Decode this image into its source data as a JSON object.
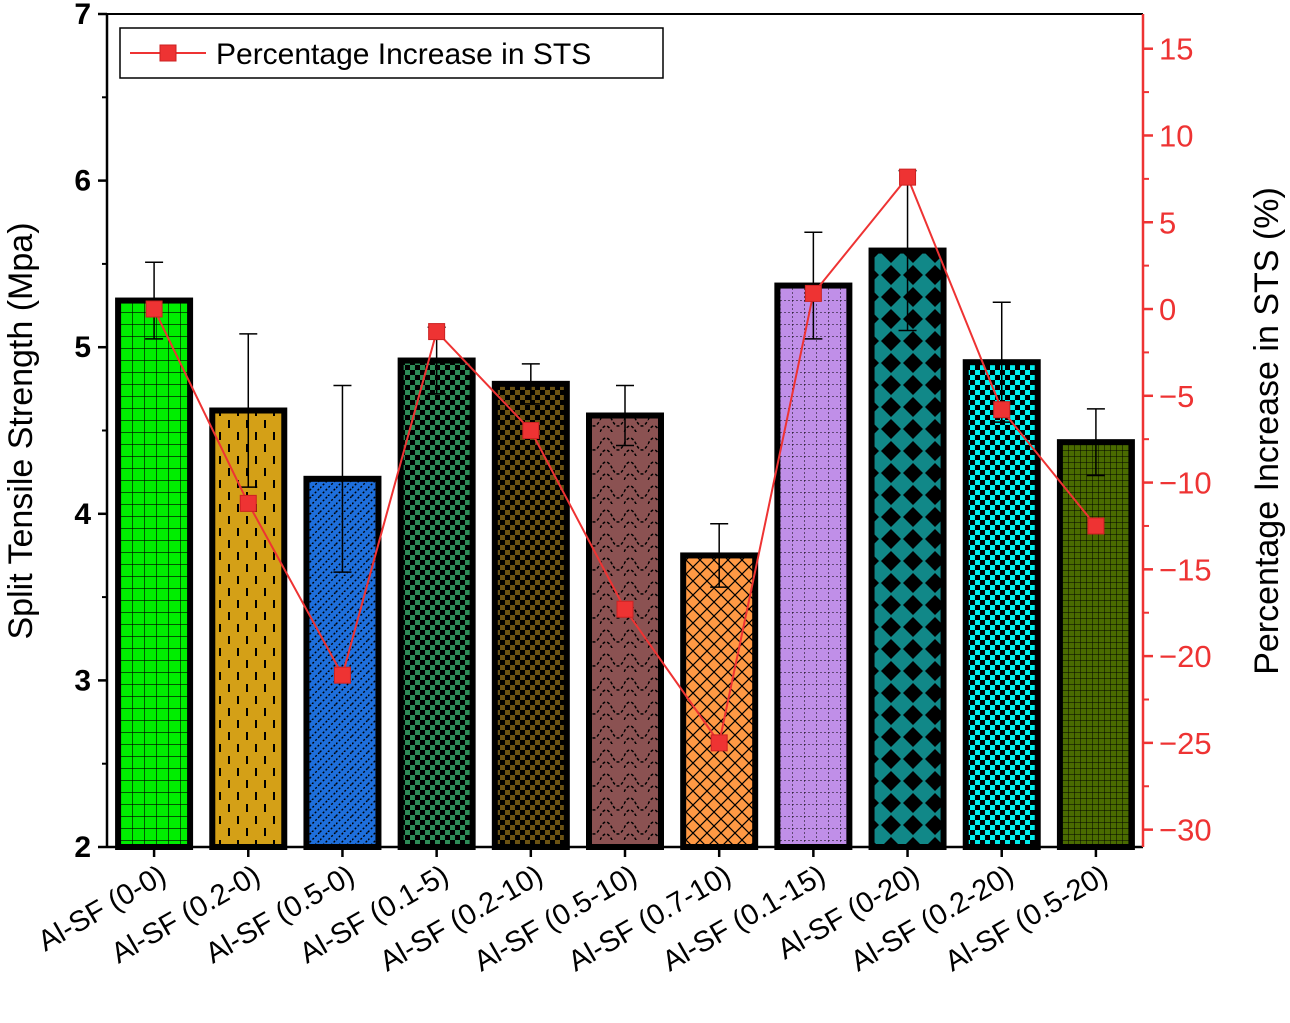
{
  "chart_data": {
    "type": "bar",
    "categories": [
      "Al-SF (0-0)",
      "Al-SF (0.2-0)",
      "Al-SF (0.5-0)",
      "Al-SF (0.1-5)",
      "Al-SF (0.2-10)",
      "Al-SF (0.5-10)",
      "Al-SF (0.7-10)",
      "Al-SF (0.1-15)",
      "Al-SF (0-20)",
      "Al-SF (0.2-20)",
      "Al-SF (0.5-20)"
    ],
    "series": [
      {
        "type": "bar",
        "axis": "left",
        "values": [
          5.28,
          4.62,
          4.21,
          4.92,
          4.78,
          4.59,
          3.75,
          5.37,
          5.58,
          4.91,
          4.43
        ],
        "error": [
          0.23,
          0.46,
          0.56,
          0.2,
          0.12,
          0.18,
          0.19,
          0.32,
          0.48,
          0.36,
          0.2
        ],
        "colors": [
          "#00ee00",
          "#d4a017",
          "#1e6fdc",
          "#2e8b57",
          "#6b5213",
          "#8b5252",
          "#ff9944",
          "#c08fe8",
          "#118888",
          "#00eeee",
          "#4a6b00"
        ],
        "patterns": [
          "grid",
          "dashes",
          "weave",
          "checker",
          "checker",
          "scales",
          "crosshatch",
          "dotgrid",
          "diamonds",
          "checker",
          "finegrid"
        ]
      },
      {
        "type": "line",
        "axis": "right",
        "name": "Percentage Increase in STS",
        "color": "#ee3333",
        "values": [
          0,
          -11.2,
          -21.1,
          -1.3,
          -7.0,
          -17.3,
          -25.0,
          0.9,
          7.6,
          -5.8,
          -12.5
        ]
      }
    ],
    "ylabel": "Split Tensile Strength (Mpa)",
    "ylim": [
      2,
      7
    ],
    "yticks": [
      "2",
      "3",
      "4",
      "5",
      "6",
      "7"
    ],
    "y2label": "Percentage Increase in STS (%)",
    "y2lim": [
      -31,
      17
    ],
    "y2ticks": [
      "15",
      "10",
      "5",
      "0",
      "−5",
      "−10",
      "−15",
      "−20",
      "−25",
      "−30"
    ],
    "legend": {
      "position": "top-left",
      "label": "Percentage Increase in STS"
    },
    "grid": false
  }
}
